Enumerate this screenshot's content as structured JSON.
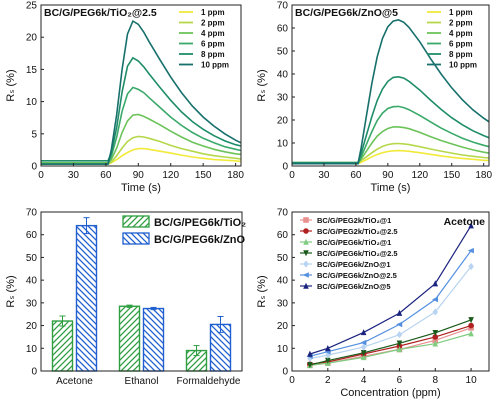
{
  "chart_data": [
    {
      "type": "line",
      "title": "BC/G/PEG6k/TiO₂@2.5",
      "xlabel": "Time (s)",
      "ylabel": "Rₛ (%)",
      "xlim": [
        0,
        185
      ],
      "ylim": [
        0,
        25
      ],
      "xticks": [
        "0",
        "30",
        "60",
        "90",
        "120",
        "150",
        "180"
      ],
      "yticks": [
        "0",
        "5",
        "10",
        "15",
        "20",
        "25"
      ],
      "legend_position": "top-right",
      "series": [
        {
          "name": "1 ppm",
          "color": "#f2ea3a",
          "x": [
            0,
            10,
            20,
            30,
            40,
            50,
            55,
            60,
            62,
            65,
            70,
            75,
            80,
            85,
            90,
            95,
            100,
            110,
            120,
            130,
            140,
            150,
            160,
            170,
            180,
            185
          ],
          "y": [
            0.3,
            0.3,
            0.3,
            0.3,
            0.3,
            0.3,
            0.3,
            0.3,
            0.3,
            0.5,
            1.0,
            1.6,
            2.1,
            2.5,
            2.7,
            2.7,
            2.6,
            2.3,
            2.0,
            1.7,
            1.4,
            1.2,
            1.0,
            0.9,
            0.8,
            0.7
          ]
        },
        {
          "name": "2 ppm",
          "color": "#b5d84a",
          "x": [
            0,
            10,
            20,
            30,
            40,
            50,
            55,
            60,
            62,
            65,
            70,
            75,
            80,
            85,
            90,
            95,
            100,
            110,
            120,
            130,
            140,
            150,
            160,
            170,
            180,
            185
          ],
          "y": [
            0.3,
            0.3,
            0.3,
            0.3,
            0.3,
            0.3,
            0.3,
            0.3,
            0.3,
            0.6,
            1.6,
            2.8,
            3.8,
            4.4,
            4.6,
            4.5,
            4.3,
            3.8,
            3.2,
            2.7,
            2.3,
            1.9,
            1.6,
            1.4,
            1.2,
            1.1
          ]
        },
        {
          "name": "4 ppm",
          "color": "#6cc35a",
          "x": [
            0,
            10,
            20,
            30,
            40,
            50,
            55,
            60,
            62,
            65,
            70,
            75,
            80,
            85,
            90,
            95,
            100,
            110,
            120,
            130,
            140,
            150,
            160,
            170,
            180,
            185
          ],
          "y": [
            0.5,
            0.5,
            0.5,
            0.5,
            0.5,
            0.5,
            0.5,
            0.5,
            0.5,
            1.0,
            2.8,
            5.2,
            7.0,
            7.9,
            8.0,
            7.7,
            7.3,
            6.4,
            5.4,
            4.5,
            3.7,
            3.1,
            2.6,
            2.2,
            1.9,
            1.8
          ]
        },
        {
          "name": "6 ppm",
          "color": "#3aa96a",
          "x": [
            0,
            10,
            20,
            30,
            40,
            50,
            55,
            60,
            62,
            65,
            70,
            75,
            80,
            85,
            90,
            95,
            100,
            110,
            120,
            130,
            140,
            150,
            160,
            170,
            180,
            185
          ],
          "y": [
            0.3,
            0.3,
            0.3,
            0.3,
            0.3,
            0.3,
            0.3,
            0.3,
            0.3,
            1.5,
            4.5,
            8.5,
            11.2,
            12.2,
            11.9,
            11.4,
            10.6,
            9.1,
            7.6,
            6.3,
            5.2,
            4.3,
            3.6,
            3.0,
            2.6,
            2.4
          ]
        },
        {
          "name": "8 ppm",
          "color": "#1f8d6a",
          "x": [
            0,
            10,
            20,
            30,
            40,
            50,
            55,
            60,
            62,
            65,
            70,
            75,
            80,
            85,
            90,
            95,
            100,
            110,
            120,
            130,
            140,
            150,
            160,
            170,
            180,
            185
          ],
          "y": [
            0.8,
            0.8,
            0.8,
            0.8,
            0.8,
            0.8,
            0.8,
            0.8,
            0.8,
            2.0,
            6.0,
            11.5,
            15.5,
            16.8,
            16.3,
            15.4,
            14.3,
            12.2,
            10.2,
            8.4,
            6.9,
            5.7,
            4.7,
            3.9,
            3.3,
            3.1
          ]
        },
        {
          "name": "10 ppm",
          "color": "#17706c",
          "x": [
            0,
            10,
            20,
            30,
            40,
            50,
            55,
            60,
            62,
            65,
            70,
            75,
            80,
            85,
            90,
            95,
            100,
            110,
            120,
            130,
            140,
            150,
            160,
            170,
            180,
            185
          ],
          "y": [
            0.3,
            0.3,
            0.3,
            0.3,
            0.3,
            0.3,
            0.3,
            0.3,
            0.3,
            2.5,
            8.0,
            15.0,
            20.5,
            22.5,
            22.0,
            20.8,
            19.3,
            16.5,
            13.8,
            11.4,
            9.3,
            7.6,
            6.2,
            5.0,
            4.0,
            3.6
          ]
        }
      ]
    },
    {
      "type": "line",
      "title": "BC/G/PEG6k/ZnO@5",
      "xlabel": "Time (s)",
      "ylabel": "Rₛ (%)",
      "xlim": [
        0,
        185
      ],
      "ylim": [
        0,
        70
      ],
      "xticks": [
        "0",
        "30",
        "60",
        "90",
        "120",
        "150",
        "180"
      ],
      "yticks": [
        "0",
        "10",
        "20",
        "30",
        "40",
        "50",
        "60",
        "70"
      ],
      "legend_position": "top-right",
      "series": [
        {
          "name": "1 ppm",
          "color": "#f2ea3a",
          "x": [
            0,
            10,
            20,
            30,
            40,
            50,
            55,
            60,
            62,
            65,
            70,
            75,
            80,
            85,
            90,
            95,
            100,
            105,
            110,
            120,
            130,
            140,
            150,
            160,
            170,
            180,
            185
          ],
          "y": [
            1.0,
            1.0,
            1.0,
            1.0,
            1.0,
            1.0,
            1.0,
            1.0,
            1.0,
            1.6,
            2.8,
            4.0,
            5.0,
            5.8,
            6.3,
            6.6,
            6.7,
            6.6,
            6.4,
            5.8,
            5.1,
            4.4,
            3.8,
            3.3,
            2.9,
            2.5,
            2.4
          ]
        },
        {
          "name": "2 ppm",
          "color": "#b5d84a",
          "x": [
            0,
            10,
            20,
            30,
            40,
            50,
            55,
            60,
            62,
            65,
            70,
            75,
            80,
            85,
            90,
            95,
            100,
            105,
            110,
            120,
            130,
            140,
            150,
            160,
            170,
            180,
            185
          ],
          "y": [
            1.5,
            1.5,
            1.5,
            1.5,
            1.5,
            1.5,
            1.5,
            1.5,
            1.5,
            2.4,
            4.0,
            5.8,
            7.3,
            8.5,
            9.3,
            9.7,
            9.8,
            9.6,
            9.3,
            8.4,
            7.4,
            6.5,
            5.6,
            4.8,
            4.2,
            3.7,
            3.5
          ]
        },
        {
          "name": "4 ppm",
          "color": "#6cc35a",
          "x": [
            0,
            10,
            20,
            30,
            40,
            50,
            55,
            60,
            62,
            65,
            70,
            75,
            80,
            85,
            90,
            95,
            100,
            105,
            110,
            120,
            130,
            140,
            150,
            160,
            170,
            180,
            185
          ],
          "y": [
            1.0,
            1.0,
            1.0,
            1.0,
            1.0,
            1.0,
            1.0,
            1.0,
            1.0,
            3.0,
            6.5,
            10.0,
            13.0,
            15.0,
            16.3,
            17.0,
            17.0,
            16.7,
            16.2,
            14.6,
            12.8,
            11.1,
            9.6,
            8.2,
            7.0,
            6.0,
            5.6
          ]
        },
        {
          "name": "6 ppm",
          "color": "#3aa96a",
          "x": [
            0,
            10,
            20,
            30,
            40,
            50,
            55,
            60,
            62,
            65,
            70,
            75,
            80,
            85,
            90,
            95,
            100,
            105,
            110,
            120,
            130,
            140,
            150,
            160,
            170,
            180,
            185
          ],
          "y": [
            1.0,
            1.0,
            1.0,
            1.0,
            1.0,
            1.0,
            1.0,
            1.0,
            1.0,
            4.0,
            9.5,
            15.0,
            19.8,
            23.0,
            25.0,
            25.8,
            25.9,
            25.4,
            24.5,
            22.0,
            19.2,
            16.5,
            14.2,
            12.1,
            10.4,
            9.0,
            8.4
          ]
        },
        {
          "name": "8 ppm",
          "color": "#1f8d6a",
          "x": [
            0,
            10,
            20,
            30,
            40,
            50,
            55,
            60,
            62,
            65,
            70,
            75,
            80,
            85,
            90,
            95,
            100,
            105,
            110,
            120,
            130,
            140,
            150,
            160,
            170,
            180,
            185
          ],
          "y": [
            1.5,
            1.5,
            1.5,
            1.5,
            1.5,
            1.5,
            1.5,
            1.5,
            1.5,
            5.5,
            13.5,
            21.5,
            28.5,
            33.5,
            36.8,
            38.5,
            38.8,
            38.2,
            36.8,
            33.0,
            28.7,
            24.6,
            21.0,
            17.9,
            15.3,
            13.2,
            12.3
          ]
        },
        {
          "name": "10 ppm",
          "color": "#17706c",
          "x": [
            0,
            10,
            20,
            30,
            40,
            50,
            55,
            60,
            62,
            65,
            70,
            75,
            80,
            85,
            90,
            95,
            100,
            105,
            110,
            120,
            130,
            140,
            150,
            160,
            170,
            180,
            185
          ],
          "y": [
            1.0,
            1.0,
            1.0,
            1.0,
            1.0,
            1.0,
            1.0,
            1.0,
            1.0,
            8.0,
            22.0,
            36.0,
            47.5,
            55.5,
            60.5,
            63.0,
            63.5,
            62.5,
            60.2,
            54.0,
            46.8,
            40.0,
            34.0,
            28.8,
            24.4,
            20.8,
            19.2
          ]
        }
      ]
    },
    {
      "type": "bar",
      "title": "",
      "xlabel": "",
      "ylabel": "Rₛ (%)",
      "ylim": [
        0,
        70
      ],
      "yticks": [
        "0",
        "10",
        "20",
        "30",
        "40",
        "50",
        "60",
        "70"
      ],
      "categories": [
        "Acetone",
        "Ethanol",
        "Formaldehyde"
      ],
      "legend_position": "top-right",
      "series": [
        {
          "name": "BC/G/PEG6k/TiO₂",
          "color": "#2e9e40",
          "values": [
            22.0,
            28.5,
            9.0
          ],
          "errors": [
            2.2,
            0.5,
            2.2
          ]
        },
        {
          "name": "BC/G/PEG6k/ZnO",
          "color": "#1f5fd0",
          "values": [
            64.0,
            27.5,
            20.5
          ],
          "errors": [
            3.5,
            0.5,
            3.5
          ]
        }
      ]
    },
    {
      "type": "scatter",
      "title": "Acetone",
      "xlabel": "Concentration (ppm)",
      "ylabel": "Rₛ (%)",
      "xlim": [
        0,
        11
      ],
      "ylim": [
        0,
        70
      ],
      "xticks": [
        "0",
        "2",
        "4",
        "6",
        "8",
        "10"
      ],
      "yticks": [
        "0",
        "10",
        "20",
        "30",
        "40",
        "50",
        "60",
        "70"
      ],
      "legend_position": "top-left",
      "series": [
        {
          "name": "BC/G/PEG2k/TiO₂@1",
          "color": "#e89090",
          "marker": "square",
          "x": [
            1,
            2,
            4,
            6,
            8,
            10
          ],
          "y": [
            2.5,
            3.5,
            6.5,
            9.5,
            13.5,
            19.0
          ]
        },
        {
          "name": "BC/G/PEG2k/TiO₂@2.5",
          "color": "#b02020",
          "marker": "circle",
          "x": [
            1,
            2,
            4,
            6,
            8,
            10
          ],
          "y": [
            3.0,
            4.0,
            7.5,
            11.0,
            15.0,
            20.0
          ]
        },
        {
          "name": "BC/G/PEG6k/TiO₂@1",
          "color": "#80cc80",
          "marker": "triangle-up",
          "x": [
            1,
            2,
            4,
            6,
            8,
            10
          ],
          "y": [
            2.5,
            3.5,
            6.0,
            9.5,
            12.0,
            16.5
          ]
        },
        {
          "name": "BC/G/PEG6k/TiO₂@2.5",
          "color": "#1a5a1a",
          "marker": "triangle-down",
          "x": [
            1,
            2,
            4,
            6,
            8,
            10
          ],
          "y": [
            2.7,
            4.6,
            8.0,
            12.2,
            16.8,
            22.5
          ]
        },
        {
          "name": "BC/G/PEG6k/ZnO@1",
          "color": "#b8d4f0",
          "marker": "diamond",
          "x": [
            1,
            2,
            4,
            6,
            8,
            10
          ],
          "y": [
            5.5,
            7.0,
            10.5,
            16.0,
            26.0,
            46.0
          ]
        },
        {
          "name": "BC/G/PEG6k/ZnO@2.5",
          "color": "#5590e0",
          "marker": "triangle-left",
          "x": [
            1,
            2,
            4,
            6,
            8,
            10
          ],
          "y": [
            6.5,
            8.5,
            12.5,
            20.5,
            31.5,
            53.0
          ]
        },
        {
          "name": "BC/G/PEG6k/ZnO@5",
          "color": "#1a237e",
          "marker": "triangle-up",
          "x": [
            1,
            2,
            4,
            6,
            8,
            10
          ],
          "y": [
            7.5,
            10.0,
            17.0,
            25.5,
            38.5,
            64.0
          ]
        }
      ]
    }
  ]
}
